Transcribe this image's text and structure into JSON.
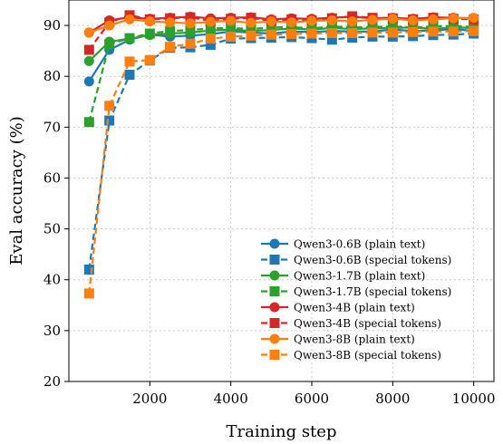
{
  "chart_data": {
    "type": "line",
    "title": "",
    "xlabel": "Training step",
    "ylabel": "Eval accuracy (%)",
    "xlim": [
      0,
      10500
    ],
    "ylim": [
      20,
      95
    ],
    "xticks": [
      2000,
      4000,
      6000,
      8000,
      10000
    ],
    "yticks": [
      20,
      30,
      40,
      50,
      60,
      70,
      80,
      90
    ],
    "grid": true,
    "legend_position": "lower-right",
    "x": [
      500,
      1000,
      1500,
      2000,
      2500,
      3000,
      3500,
      4000,
      4500,
      5000,
      5500,
      6000,
      6500,
      7000,
      7500,
      8000,
      8500,
      9000,
      9500,
      10000
    ],
    "series": [
      {
        "name": "Qwen3-0.6B (plain text)",
        "color": "#1f77b4",
        "marker": "circle",
        "style": "solid",
        "values": [
          79,
          85.2,
          87.2,
          88.2,
          87.8,
          88.0,
          88.3,
          88.8,
          88.6,
          88.4,
          88.8,
          88.7,
          88.9,
          88.8,
          88.8,
          89.2,
          88.9,
          89.0,
          89.3,
          88.9
        ]
      },
      {
        "name": "Qwen3-0.6B (special tokens)",
        "color": "#1f77b4",
        "marker": "square",
        "style": "dashed",
        "values": [
          42,
          71.3,
          80.3,
          83.1,
          85.6,
          85.7,
          86.2,
          87.4,
          87.5,
          87.6,
          87.7,
          87.5,
          87.2,
          87.6,
          87.8,
          87.8,
          87.9,
          88.1,
          88.2,
          88.4
        ]
      },
      {
        "name": "Qwen3-1.7B (plain text)",
        "color": "#2ca02c",
        "marker": "circle",
        "style": "solid",
        "values": [
          83,
          86.8,
          87.4,
          88.1,
          88.4,
          88.6,
          89.0,
          89.2,
          88.9,
          89.1,
          89.4,
          89.2,
          89.5,
          89.3,
          89.4,
          89.5,
          89.6,
          89.3,
          89.6,
          89.5
        ]
      },
      {
        "name": "Qwen3-1.7B (special tokens)",
        "color": "#2ca02c",
        "marker": "square",
        "style": "dashed",
        "values": [
          71,
          86.3,
          87.5,
          88.4,
          88.9,
          89.1,
          89.4,
          89.5,
          89.3,
          89.6,
          89.7,
          89.4,
          89.8,
          89.6,
          89.7,
          89.8,
          89.6,
          89.8,
          89.9,
          89.7
        ]
      },
      {
        "name": "Qwen3-4B (plain text)",
        "color": "#d62728",
        "marker": "circle",
        "style": "solid",
        "values": [
          88.6,
          91.0,
          91.6,
          91.3,
          91.5,
          91.7,
          91.4,
          91.5,
          91.6,
          91.2,
          91.4,
          91.3,
          91.5,
          91.7,
          91.4,
          91.5,
          91.3,
          91.6,
          91.5,
          91.4
        ]
      },
      {
        "name": "Qwen3-4B (special tokens)",
        "color": "#d62728",
        "marker": "square",
        "style": "dashed",
        "values": [
          85.2,
          90.6,
          92.0,
          91.2,
          91.4,
          91.6,
          90.9,
          91.3,
          91.5,
          90.9,
          91.2,
          91.0,
          91.4,
          91.8,
          91.5,
          91.4,
          91.2,
          91.5,
          91.3,
          91.2
        ]
      },
      {
        "name": "Qwen3-8B (plain text)",
        "color": "#ff7f0e",
        "marker": "circle",
        "style": "solid",
        "values": [
          88.6,
          90.0,
          91.2,
          90.8,
          90.6,
          90.4,
          90.7,
          90.9,
          90.5,
          90.8,
          90.6,
          90.9,
          91.0,
          90.8,
          91.1,
          91.3,
          91.0,
          91.2,
          91.4,
          91.5
        ]
      },
      {
        "name": "Qwen3-8B (special tokens)",
        "color": "#ff7f0e",
        "marker": "square",
        "style": "dashed",
        "values": [
          37.3,
          74.2,
          82.9,
          83.2,
          85.8,
          86.4,
          87.4,
          87.8,
          88.0,
          88.2,
          88.3,
          88.4,
          88.5,
          88.5,
          88.6,
          88.6,
          88.7,
          88.8,
          88.8,
          88.9
        ]
      }
    ]
  }
}
